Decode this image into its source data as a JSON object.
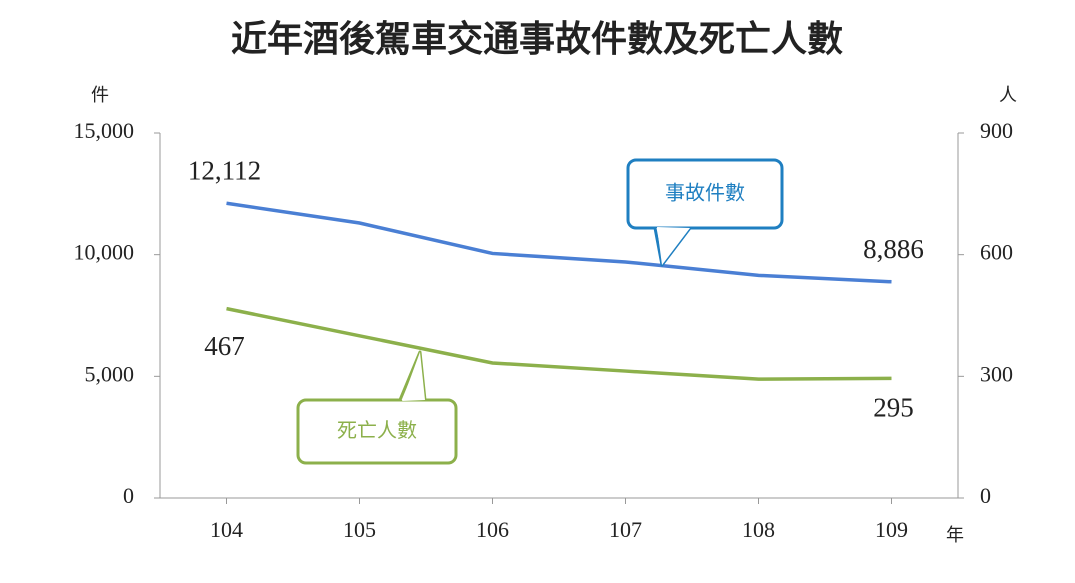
{
  "chart_data": {
    "type": "line",
    "title": "近年酒後駕車交通事故件數及死亡人數",
    "y_label": "件",
    "y2_label": "人",
    "x_label": "年",
    "categories": [
      "104",
      "105",
      "106",
      "107",
      "108",
      "109"
    ],
    "series": [
      {
        "name": "事故件數",
        "color": "#4a7fd4",
        "values": [
          12112,
          11300,
          10050,
          9700,
          9150,
          8886
        ],
        "value_labels": [
          "12,112",
          null,
          null,
          null,
          null,
          "8,886"
        ]
      },
      {
        "name": "死亡人數",
        "color": "#8cb04b",
        "axis": "y2",
        "values": [
          467,
          400,
          333,
          313,
          293,
          295
        ],
        "value_labels": [
          "467",
          null,
          null,
          null,
          null,
          "295"
        ]
      }
    ],
    "ylim": [
      0,
      15000
    ],
    "yticks": [
      0,
      {
        "value": 5000,
        "label": "5,000"
      },
      {
        "value": 10000,
        "label": "10,000"
      },
      {
        "value": 15000,
        "label": "15,000"
      }
    ],
    "y2lim": [
      0,
      900
    ],
    "y2ticks": [
      0,
      300,
      600,
      900
    ]
  }
}
